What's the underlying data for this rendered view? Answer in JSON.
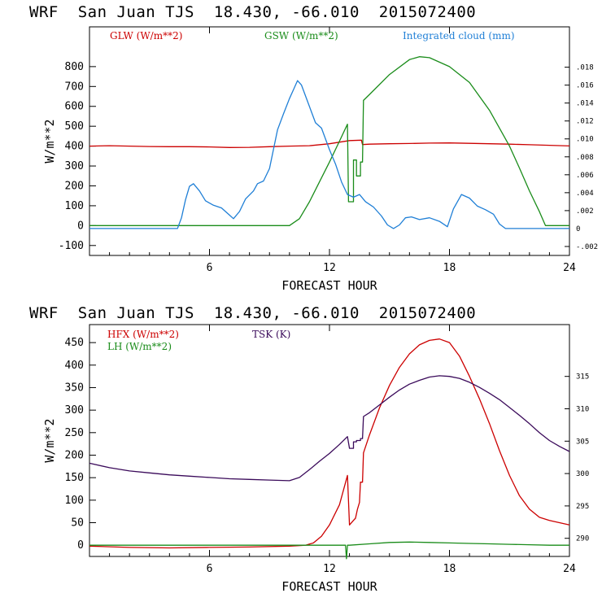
{
  "chart_data": [
    {
      "type": "line",
      "title": "WRF  San Juan TJS  18.430, -66.010  2015072400",
      "xlabel": "FORECAST HOUR",
      "ylabel": "W/m**2",
      "xlim": [
        0,
        24
      ],
      "ylim": [
        -150,
        1000
      ],
      "x_ticks": [
        6,
        12,
        18,
        24
      ],
      "y_ticks": [
        -100,
        0,
        100,
        200,
        300,
        400,
        500,
        600,
        700,
        800
      ],
      "right_axis": {
        "lim": [
          -0.003,
          0.0225
        ],
        "ticks": [
          -0.002,
          0,
          0.002,
          0.004,
          0.006,
          0.008,
          0.01,
          0.012,
          0.014,
          0.016,
          0.018
        ],
        "tick_labels": [
          "-.002",
          "0",
          ".002",
          ".004",
          ".006",
          ".008",
          ".010",
          ".012",
          ".014",
          ".016",
          ".018"
        ]
      },
      "series": [
        {
          "name": "GLW (W/m**2)",
          "color": "#cc0000",
          "axis": "left",
          "points": [
            [
              0,
              400
            ],
            [
              1,
              402
            ],
            [
              2,
              400
            ],
            [
              3,
              398
            ],
            [
              4,
              397
            ],
            [
              5,
              397
            ],
            [
              6,
              396
            ],
            [
              7,
              393
            ],
            [
              8,
              394
            ],
            [
              9,
              397
            ],
            [
              10,
              400
            ],
            [
              11,
              402
            ],
            [
              12,
              412
            ],
            [
              13,
              428
            ],
            [
              13.6,
              430
            ],
            [
              13.65,
              408
            ],
            [
              14,
              410
            ],
            [
              15,
              412
            ],
            [
              16,
              413
            ],
            [
              17,
              415
            ],
            [
              18,
              416
            ],
            [
              19,
              414
            ],
            [
              20,
              412
            ],
            [
              21,
              410
            ],
            [
              22,
              407
            ],
            [
              23,
              404
            ],
            [
              24,
              401
            ]
          ]
        },
        {
          "name": "GSW (W/m**2)",
          "color": "#1a8c1a",
          "axis": "left",
          "points": [
            [
              0,
              0
            ],
            [
              10,
              0
            ],
            [
              10.5,
              35
            ],
            [
              11,
              120
            ],
            [
              11.5,
              220
            ],
            [
              12,
              320
            ],
            [
              12.5,
              425
            ],
            [
              12.9,
              510
            ],
            [
              12.95,
              120
            ],
            [
              13.2,
              120
            ],
            [
              13.2,
              330
            ],
            [
              13.35,
              330
            ],
            [
              13.35,
              250
            ],
            [
              13.55,
              250
            ],
            [
              13.55,
              320
            ],
            [
              13.65,
              320
            ],
            [
              13.7,
              630
            ],
            [
              14,
              660
            ],
            [
              15,
              760
            ],
            [
              16,
              835
            ],
            [
              16.5,
              850
            ],
            [
              17,
              845
            ],
            [
              18,
              800
            ],
            [
              19,
              720
            ],
            [
              20,
              580
            ],
            [
              20.5,
              490
            ],
            [
              21,
              400
            ],
            [
              21.5,
              290
            ],
            [
              22,
              175
            ],
            [
              22.5,
              70
            ],
            [
              22.8,
              0
            ],
            [
              24,
              0
            ]
          ]
        },
        {
          "name": "Integrated cloud (mm)",
          "color": "#1f7fd6",
          "axis": "right",
          "points": [
            [
              0,
              0
            ],
            [
              4.4,
              0
            ],
            [
              4.6,
              0.0012
            ],
            [
              4.8,
              0.0032
            ],
            [
              5.0,
              0.0047
            ],
            [
              5.2,
              0.005
            ],
            [
              5.5,
              0.0042
            ],
            [
              5.8,
              0.0031
            ],
            [
              6.2,
              0.0026
            ],
            [
              6.6,
              0.0023
            ],
            [
              7.0,
              0.0015
            ],
            [
              7.2,
              0.0011
            ],
            [
              7.5,
              0.0019
            ],
            [
              7.8,
              0.0033
            ],
            [
              8.2,
              0.0042
            ],
            [
              8.4,
              0.005
            ],
            [
              8.7,
              0.0053
            ],
            [
              9.0,
              0.0067
            ],
            [
              9.4,
              0.011
            ],
            [
              9.7,
              0.0128
            ],
            [
              10.0,
              0.0145
            ],
            [
              10.2,
              0.0155
            ],
            [
              10.4,
              0.0165
            ],
            [
              10.6,
              0.016
            ],
            [
              10.9,
              0.0142
            ],
            [
              11.3,
              0.0118
            ],
            [
              11.6,
              0.0112
            ],
            [
              12.0,
              0.0088
            ],
            [
              12.3,
              0.0072
            ],
            [
              12.6,
              0.0052
            ],
            [
              12.9,
              0.0038
            ],
            [
              13.2,
              0.0035
            ],
            [
              13.5,
              0.0038
            ],
            [
              13.8,
              0.003
            ],
            [
              14.2,
              0.0024
            ],
            [
              14.6,
              0.0014
            ],
            [
              14.9,
              0.0004
            ],
            [
              15.2,
              0
            ],
            [
              15.5,
              0.0004
            ],
            [
              15.8,
              0.0012
            ],
            [
              16.1,
              0.0013
            ],
            [
              16.5,
              0.001
            ],
            [
              17.0,
              0.0012
            ],
            [
              17.5,
              0.0008
            ],
            [
              17.9,
              0.0002
            ],
            [
              18.2,
              0.0022
            ],
            [
              18.6,
              0.0038
            ],
            [
              19.0,
              0.0034
            ],
            [
              19.4,
              0.0025
            ],
            [
              19.8,
              0.0021
            ],
            [
              20.2,
              0.0016
            ],
            [
              20.5,
              0.0005
            ],
            [
              20.8,
              0
            ],
            [
              24,
              0
            ]
          ]
        }
      ],
      "legend_placement": "top"
    },
    {
      "type": "line",
      "title": "WRF  San Juan TJS  18.430, -66.010  2015072400",
      "xlabel": "FORECAST HOUR",
      "ylabel": "W/m**2",
      "xlim": [
        0,
        24
      ],
      "ylim": [
        -25,
        490
      ],
      "x_ticks": [
        6,
        12,
        18,
        24
      ],
      "y_ticks": [
        0,
        50,
        100,
        150,
        200,
        250,
        300,
        350,
        400,
        450
      ],
      "right_axis": {
        "lim": [
          287.2,
          323.0
        ],
        "ticks": [
          290,
          295,
          300,
          305,
          310,
          315
        ],
        "tick_labels": [
          "290",
          "295",
          "300",
          "305",
          "310",
          "315"
        ]
      },
      "series": [
        {
          "name": "HFX (W/m**2)",
          "color": "#cc0000",
          "axis": "left",
          "points": [
            [
              0,
              -2
            ],
            [
              2,
              -5
            ],
            [
              4,
              -6
            ],
            [
              6,
              -5
            ],
            [
              8,
              -4
            ],
            [
              10,
              -2
            ],
            [
              10.8,
              0
            ],
            [
              11.2,
              5
            ],
            [
              11.6,
              20
            ],
            [
              12.0,
              45
            ],
            [
              12.5,
              90
            ],
            [
              12.9,
              155
            ],
            [
              13.0,
              45
            ],
            [
              13.2,
              55
            ],
            [
              13.3,
              60
            ],
            [
              13.4,
              80
            ],
            [
              13.5,
              95
            ],
            [
              13.55,
              140
            ],
            [
              13.65,
              140
            ],
            [
              13.7,
              205
            ],
            [
              14,
              245
            ],
            [
              14.5,
              305
            ],
            [
              15,
              355
            ],
            [
              15.5,
              395
            ],
            [
              16,
              425
            ],
            [
              16.5,
              445
            ],
            [
              17,
              455
            ],
            [
              17.5,
              458
            ],
            [
              18,
              450
            ],
            [
              18.5,
              420
            ],
            [
              19,
              375
            ],
            [
              19.5,
              325
            ],
            [
              20,
              270
            ],
            [
              20.5,
              210
            ],
            [
              21,
              155
            ],
            [
              21.5,
              110
            ],
            [
              22,
              80
            ],
            [
              22.5,
              62
            ],
            [
              23,
              55
            ],
            [
              23.5,
              50
            ],
            [
              24,
              45
            ]
          ]
        },
        {
          "name": "LH (W/m**2)",
          "color": "#1a8c1a",
          "axis": "left",
          "points": [
            [
              0,
              0
            ],
            [
              12.8,
              0
            ],
            [
              12.85,
              -30
            ],
            [
              12.9,
              0
            ],
            [
              13,
              0
            ],
            [
              14,
              3
            ],
            [
              15,
              6
            ],
            [
              16,
              7
            ],
            [
              17,
              6
            ],
            [
              18,
              5
            ],
            [
              19,
              4
            ],
            [
              20,
              3
            ],
            [
              21,
              2
            ],
            [
              22,
              1
            ],
            [
              23,
              0
            ],
            [
              24,
              0
            ]
          ]
        },
        {
          "name": "TSK (K)",
          "color": "#3a0a5a",
          "axis": "right",
          "points": [
            [
              0,
              301.6
            ],
            [
              1,
              300.9
            ],
            [
              2,
              300.4
            ],
            [
              3,
              300.1
            ],
            [
              4,
              299.8
            ],
            [
              5,
              299.6
            ],
            [
              6,
              299.4
            ],
            [
              7,
              299.2
            ],
            [
              8,
              299.1
            ],
            [
              9,
              299.0
            ],
            [
              10,
              298.9
            ],
            [
              10.5,
              299.4
            ],
            [
              11,
              300.6
            ],
            [
              11.5,
              301.9
            ],
            [
              12,
              303.1
            ],
            [
              12.5,
              304.5
            ],
            [
              12.9,
              305.7
            ],
            [
              13.0,
              303.9
            ],
            [
              13.2,
              303.9
            ],
            [
              13.2,
              304.9
            ],
            [
              13.35,
              304.9
            ],
            [
              13.35,
              305.1
            ],
            [
              13.55,
              305.1
            ],
            [
              13.55,
              305.4
            ],
            [
              13.65,
              305.4
            ],
            [
              13.7,
              308.8
            ],
            [
              14,
              309.4
            ],
            [
              14.5,
              310.6
            ],
            [
              15,
              311.8
            ],
            [
              15.5,
              312.9
            ],
            [
              16,
              313.8
            ],
            [
              16.5,
              314.4
            ],
            [
              17,
              314.9
            ],
            [
              17.5,
              315.1
            ],
            [
              18,
              315.0
            ],
            [
              18.5,
              314.7
            ],
            [
              19,
              314.1
            ],
            [
              19.5,
              313.3
            ],
            [
              20,
              312.4
            ],
            [
              20.5,
              311.4
            ],
            [
              21,
              310.2
            ],
            [
              21.5,
              309.0
            ],
            [
              22,
              307.7
            ],
            [
              22.5,
              306.3
            ],
            [
              23,
              305.1
            ],
            [
              23.5,
              304.2
            ],
            [
              24,
              303.4
            ]
          ]
        }
      ],
      "legend_placement": "top-left"
    }
  ]
}
